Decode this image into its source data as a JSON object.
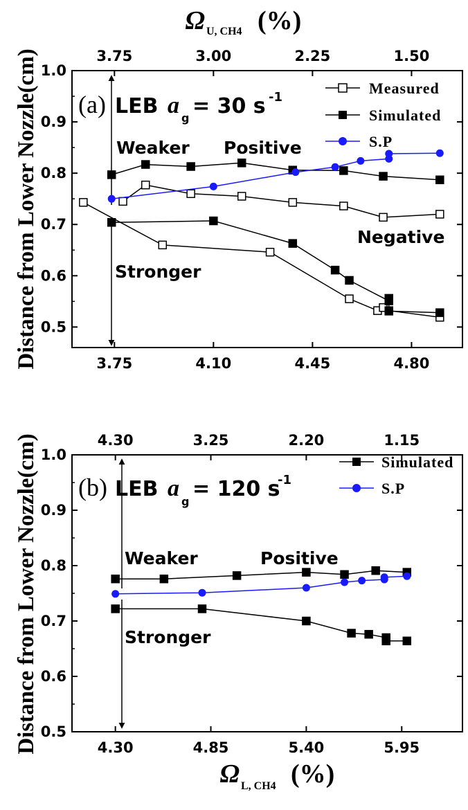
{
  "chart_data": [
    {
      "type": "line",
      "panel": "(a)",
      "title_prefix": "LEB",
      "title_var": "a",
      "title_sub": "g",
      "title_value": "= 30 s",
      "title_exp": "-1",
      "ylabel": "Distance from Lower Nozzle(cm)",
      "xlabel_bottom": "",
      "xlabel_top_var": "Ω",
      "xlabel_top_sub": "U, CH4",
      "xlabel_top_unit": "(%)",
      "xlim": [
        3.6,
        4.98
      ],
      "ylim": [
        0.46,
        1.0
      ],
      "yticks": [
        0.5,
        0.6,
        0.7,
        0.8,
        0.9,
        1.0
      ],
      "ytick_labels": [
        "0.5",
        "0.6",
        "0.7",
        "0.8",
        "0.9",
        "1.0"
      ],
      "xticks_bottom": [
        3.75,
        4.1,
        4.45,
        4.8
      ],
      "xtick_labels_bottom": [
        "3.75",
        "4.10",
        "4.45",
        "4.80"
      ],
      "xticks_top": [
        3.75,
        4.1,
        4.45,
        4.8
      ],
      "xtick_labels_top": [
        "3.75",
        "3.00",
        "2.25",
        "1.50"
      ],
      "series": [
        {
          "name": "Measured",
          "color": "#000000",
          "marker": "square-open",
          "x": [
            3.78,
            3.86,
            4.02,
            4.2,
            4.38,
            4.56,
            4.7,
            4.9
          ],
          "y": [
            0.745,
            0.777,
            0.76,
            0.755,
            0.743,
            0.736,
            0.714,
            0.72
          ]
        },
        {
          "name": "Measured",
          "color": "#000000",
          "marker": "square-open",
          "x": [
            3.64,
            3.92,
            4.3,
            4.58,
            4.68,
            4.7,
            4.72,
            4.9
          ],
          "y": [
            0.743,
            0.66,
            0.646,
            0.555,
            0.532,
            0.538,
            0.532,
            0.519
          ]
        },
        {
          "name": "Simulated",
          "color": "#000000",
          "marker": "square-filled",
          "x": [
            3.74,
            3.86,
            4.02,
            4.2,
            4.38,
            4.56,
            4.7,
            4.9
          ],
          "y": [
            0.797,
            0.817,
            0.813,
            0.82,
            0.806,
            0.805,
            0.794,
            0.787
          ]
        },
        {
          "name": "Simulated",
          "color": "#000000",
          "marker": "square-filled",
          "x": [
            3.74,
            4.1,
            4.38,
            4.53,
            4.58,
            4.72,
            4.72,
            4.72,
            4.9
          ],
          "y": [
            0.704,
            0.707,
            0.663,
            0.611,
            0.591,
            0.551,
            0.556,
            0.531,
            0.528
          ]
        },
        {
          "name": "S.P",
          "color": "#1a1aff",
          "marker": "circle-filled",
          "x": [
            3.74,
            4.1,
            4.39,
            4.53,
            4.62,
            4.72,
            4.72,
            4.9
          ],
          "y": [
            0.75,
            0.774,
            0.802,
            0.812,
            0.824,
            0.828,
            0.838,
            0.839
          ]
        }
      ],
      "legend": [
        "Measured",
        "Simulated",
        "S.P"
      ],
      "legend_position": "top-right",
      "annotations": [
        "Weaker",
        "Positive",
        "Negative",
        "Stronger"
      ]
    },
    {
      "type": "line",
      "panel": "(b)",
      "title_prefix": "LEB",
      "title_var": "a",
      "title_sub": "g",
      "title_value": "= 120 s",
      "title_exp": "-1",
      "ylabel": "Distance from Lower Nozzle(cm)",
      "xlabel_bottom_var": "Ω",
      "xlabel_bottom_sub": "L, CH4",
      "xlabel_bottom_unit": "(%)",
      "xlim": [
        4.05,
        6.3
      ],
      "ylim": [
        0.5,
        1.0
      ],
      "yticks": [
        0.5,
        0.6,
        0.7,
        0.8,
        0.9,
        1.0
      ],
      "ytick_labels": [
        "0.5",
        "0.6",
        "0.7",
        "0.8",
        "0.9",
        "1.0"
      ],
      "xticks_bottom": [
        4.3,
        4.85,
        5.4,
        5.95
      ],
      "xtick_labels_bottom": [
        "4.30",
        "4.85",
        "5.40",
        "5.95"
      ],
      "xticks_top": [
        4.3,
        4.85,
        5.4,
        5.95
      ],
      "xtick_labels_top": [
        "4.30",
        "3.25",
        "2.20",
        "1.15"
      ],
      "series": [
        {
          "name": "Simulated",
          "color": "#000000",
          "marker": "square-filled",
          "x": [
            4.3,
            4.58,
            5.0,
            5.4,
            5.62,
            5.8,
            5.98
          ],
          "y": [
            0.776,
            0.776,
            0.782,
            0.788,
            0.784,
            0.791,
            0.788
          ]
        },
        {
          "name": "Simulated",
          "color": "#000000",
          "marker": "square-filled",
          "x": [
            4.3,
            4.8,
            5.4,
            5.66,
            5.76,
            5.86,
            5.86,
            5.98
          ],
          "y": [
            0.722,
            0.722,
            0.7,
            0.678,
            0.676,
            0.67,
            0.664,
            0.664
          ]
        },
        {
          "name": "S.P",
          "color": "#1a1aff",
          "marker": "circle-filled",
          "x": [
            4.3,
            4.8,
            5.4,
            5.62,
            5.72,
            5.85,
            5.85,
            5.98
          ],
          "y": [
            0.749,
            0.751,
            0.76,
            0.77,
            0.773,
            0.775,
            0.779,
            0.781
          ]
        }
      ],
      "legend": [
        "Simulated",
        "S.P"
      ],
      "legend_position": "top-right",
      "annotations": [
        "Weaker",
        "Positive",
        "Stronger"
      ]
    }
  ]
}
